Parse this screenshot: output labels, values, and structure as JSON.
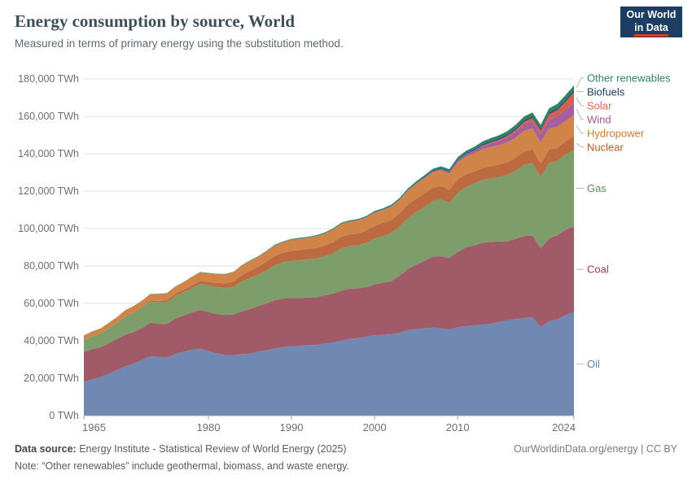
{
  "header": {
    "title": "Energy consumption by source, World",
    "subtitle": "Measured in terms of primary energy using the substitution method."
  },
  "logo": {
    "line1": "Our World",
    "line2": "in Data",
    "bg": "#1d3d63",
    "accent": "#e63912"
  },
  "footer": {
    "source_label": "Data source:",
    "source_text": " Energy Institute - Statistical Review of World Energy (2025)",
    "note_label": "Note:",
    "note_text": " “Other renewables” include geothermal, biomass, and waste energy.",
    "right": "OurWorldinData.org/energy | CC BY"
  },
  "chart_data": {
    "type": "area",
    "stacked": true,
    "title": "Energy consumption by source, World",
    "subtitle": "Measured in terms of primary energy using the substitution method.",
    "unit": "TWh",
    "ylim": [
      0,
      180000
    ],
    "ytick_step": 20000,
    "ytick_suffix": " TWh",
    "xticks": [
      1965,
      1980,
      1990,
      2000,
      2010,
      2024
    ],
    "grid": true,
    "legend_position": "right-labels",
    "x": [
      1965,
      1966,
      1967,
      1968,
      1969,
      1970,
      1971,
      1972,
      1973,
      1974,
      1975,
      1976,
      1977,
      1978,
      1979,
      1980,
      1981,
      1982,
      1983,
      1984,
      1985,
      1986,
      1987,
      1988,
      1989,
      1990,
      1991,
      1992,
      1993,
      1994,
      1995,
      1996,
      1997,
      1998,
      1999,
      2000,
      2001,
      2002,
      2003,
      2004,
      2005,
      2006,
      2007,
      2008,
      2009,
      2010,
      2011,
      2012,
      2013,
      2014,
      2015,
      2016,
      2017,
      2018,
      2019,
      2020,
      2021,
      2022,
      2023,
      2024
    ],
    "series": [
      {
        "name": "Oil",
        "fill": "#7189b2",
        "label_color": "#5b80ab",
        "values": [
          17900,
          19300,
          20600,
          22400,
          24200,
          26300,
          27700,
          29600,
          31800,
          31300,
          30900,
          32900,
          34000,
          35200,
          35800,
          34500,
          33300,
          32400,
          32200,
          32900,
          33100,
          34200,
          34900,
          36000,
          36600,
          37100,
          37300,
          37800,
          37700,
          38500,
          39100,
          40000,
          41000,
          41400,
          42200,
          42900,
          43200,
          43500,
          44200,
          45700,
          46200,
          46600,
          47100,
          46700,
          45900,
          47300,
          47700,
          48200,
          48700,
          49100,
          50100,
          50900,
          51600,
          52200,
          52600,
          47300,
          50300,
          51500,
          53800,
          55300
        ]
      },
      {
        "name": "Coal",
        "fill": "#a05a68",
        "label_color": "#9e3a46",
        "values": [
          16100,
          16300,
          15900,
          16300,
          16700,
          17100,
          17000,
          17200,
          17800,
          17800,
          18200,
          18900,
          19500,
          19900,
          20800,
          20900,
          21000,
          21400,
          21900,
          22800,
          23900,
          24300,
          25100,
          25800,
          26000,
          25900,
          25500,
          25400,
          25500,
          25800,
          26100,
          26800,
          26900,
          26600,
          26500,
          27200,
          27800,
          28400,
          30600,
          32600,
          34500,
          36200,
          37900,
          38500,
          38300,
          40200,
          42300,
          42800,
          43700,
          43800,
          43000,
          42300,
          42900,
          43800,
          43700,
          42100,
          44400,
          44900,
          45600,
          45800
        ]
      },
      {
        "name": "Gas",
        "fill": "#7d9e6b",
        "label_color": "#5f9152",
        "values": [
          6300,
          6800,
          7300,
          8000,
          8700,
          9600,
          10300,
          10900,
          11400,
          11600,
          11500,
          12100,
          12400,
          13000,
          13800,
          14200,
          14400,
          14500,
          14800,
          16000,
          16600,
          16900,
          17800,
          18600,
          19400,
          19800,
          20300,
          20400,
          20800,
          20900,
          21600,
          22700,
          22700,
          23100,
          23700,
          24500,
          24900,
          25600,
          26300,
          27200,
          28000,
          28700,
          29700,
          30300,
          29500,
          31600,
          32200,
          33000,
          33500,
          33900,
          34500,
          35500,
          36500,
          38100,
          38800,
          38300,
          40300,
          39700,
          40100,
          40800
        ]
      },
      {
        "name": "Nuclear",
        "fill": "#bd6a41",
        "label_color": "#ae5c20",
        "values": [
          70,
          90,
          110,
          140,
          170,
          220,
          290,
          400,
          530,
          650,
          1000,
          1200,
          1400,
          1600,
          1700,
          1900,
          2200,
          2400,
          2700,
          3300,
          3900,
          4200,
          4600,
          5000,
          5100,
          5300,
          5500,
          5500,
          5700,
          5800,
          6000,
          6200,
          6200,
          6300,
          6500,
          6800,
          7000,
          7100,
          7000,
          7200,
          7200,
          7300,
          7200,
          7200,
          7100,
          7200,
          6900,
          6500,
          6500,
          6600,
          6700,
          6800,
          6900,
          7000,
          7300,
          7000,
          7300,
          7000,
          7100,
          7400
        ]
      },
      {
        "name": "Hydropower",
        "fill": "#d08448",
        "label_color": "#ca7c30",
        "values": [
          2400,
          2500,
          2600,
          2700,
          2900,
          3100,
          3200,
          3300,
          3400,
          3700,
          3800,
          3800,
          4000,
          4300,
          4500,
          4600,
          4700,
          4800,
          5000,
          5100,
          5200,
          5300,
          5400,
          5600,
          5600,
          5900,
          6000,
          6000,
          6200,
          6300,
          6700,
          6800,
          6900,
          7000,
          7000,
          7100,
          7000,
          7100,
          7100,
          7500,
          7900,
          8100,
          8200,
          8500,
          8600,
          9100,
          9300,
          9600,
          10000,
          10300,
          10300,
          10700,
          10800,
          11100,
          11200,
          11300,
          11200,
          11300,
          11000,
          11500
        ]
      },
      {
        "name": "Wind",
        "fill": "#a55f9e",
        "label_color": "#a2559c",
        "values": [
          0,
          0,
          0,
          0,
          0,
          0,
          0,
          0,
          0,
          0,
          0,
          0,
          0,
          0,
          0,
          0,
          0,
          0,
          0,
          0,
          0,
          0,
          0,
          10,
          10,
          10,
          10,
          10,
          20,
          20,
          20,
          30,
          40,
          50,
          60,
          80,
          100,
          130,
          170,
          220,
          270,
          350,
          450,
          580,
          700,
          900,
          1100,
          1300,
          1600,
          1800,
          2200,
          2500,
          2900,
          3300,
          3700,
          4200,
          4900,
          5500,
          6000,
          6400
        ]
      },
      {
        "name": "Solar",
        "fill": "#d4604e",
        "label_color": "#e1604f",
        "values": [
          0,
          0,
          0,
          0,
          0,
          0,
          0,
          0,
          0,
          0,
          0,
          0,
          0,
          0,
          0,
          0,
          0,
          0,
          0,
          0,
          0,
          0,
          0,
          0,
          0,
          0,
          0,
          0,
          0,
          0,
          0,
          0,
          0,
          0,
          0,
          0,
          0,
          0,
          0,
          0,
          10,
          10,
          20,
          30,
          60,
          90,
          170,
          260,
          370,
          500,
          660,
          850,
          1200,
          1500,
          1800,
          2200,
          2700,
          3400,
          4300,
          5600
        ]
      },
      {
        "name": "Biofuels",
        "fill": "#2a5478",
        "label_color": "#1d3d63",
        "values": [
          20,
          20,
          20,
          20,
          20,
          30,
          30,
          30,
          30,
          30,
          40,
          40,
          40,
          50,
          50,
          60,
          70,
          70,
          80,
          80,
          90,
          90,
          100,
          100,
          110,
          110,
          120,
          120,
          130,
          130,
          140,
          150,
          160,
          170,
          180,
          190,
          200,
          220,
          250,
          280,
          320,
          390,
          470,
          560,
          630,
          700,
          740,
          780,
          850,
          890,
          900,
          930,
          960,
          1000,
          1050,
          1000,
          1100,
          1150,
          1250,
          1300
        ]
      },
      {
        "name": "Other renewables",
        "fill": "#2c8465",
        "label_color": "#2c8465",
        "values": [
          40,
          40,
          50,
          50,
          50,
          60,
          60,
          70,
          70,
          80,
          80,
          90,
          100,
          110,
          130,
          150,
          160,
          170,
          190,
          200,
          220,
          230,
          250,
          270,
          300,
          350,
          370,
          390,
          410,
          430,
          450,
          480,
          500,
          520,
          560,
          600,
          620,
          650,
          680,
          720,
          760,
          810,
          860,
          910,
          960,
          1100,
          1150,
          1250,
          1350,
          1450,
          1550,
          1650,
          1750,
          1850,
          1950,
          2000,
          2100,
          2200,
          2300,
          2400
        ]
      }
    ]
  }
}
